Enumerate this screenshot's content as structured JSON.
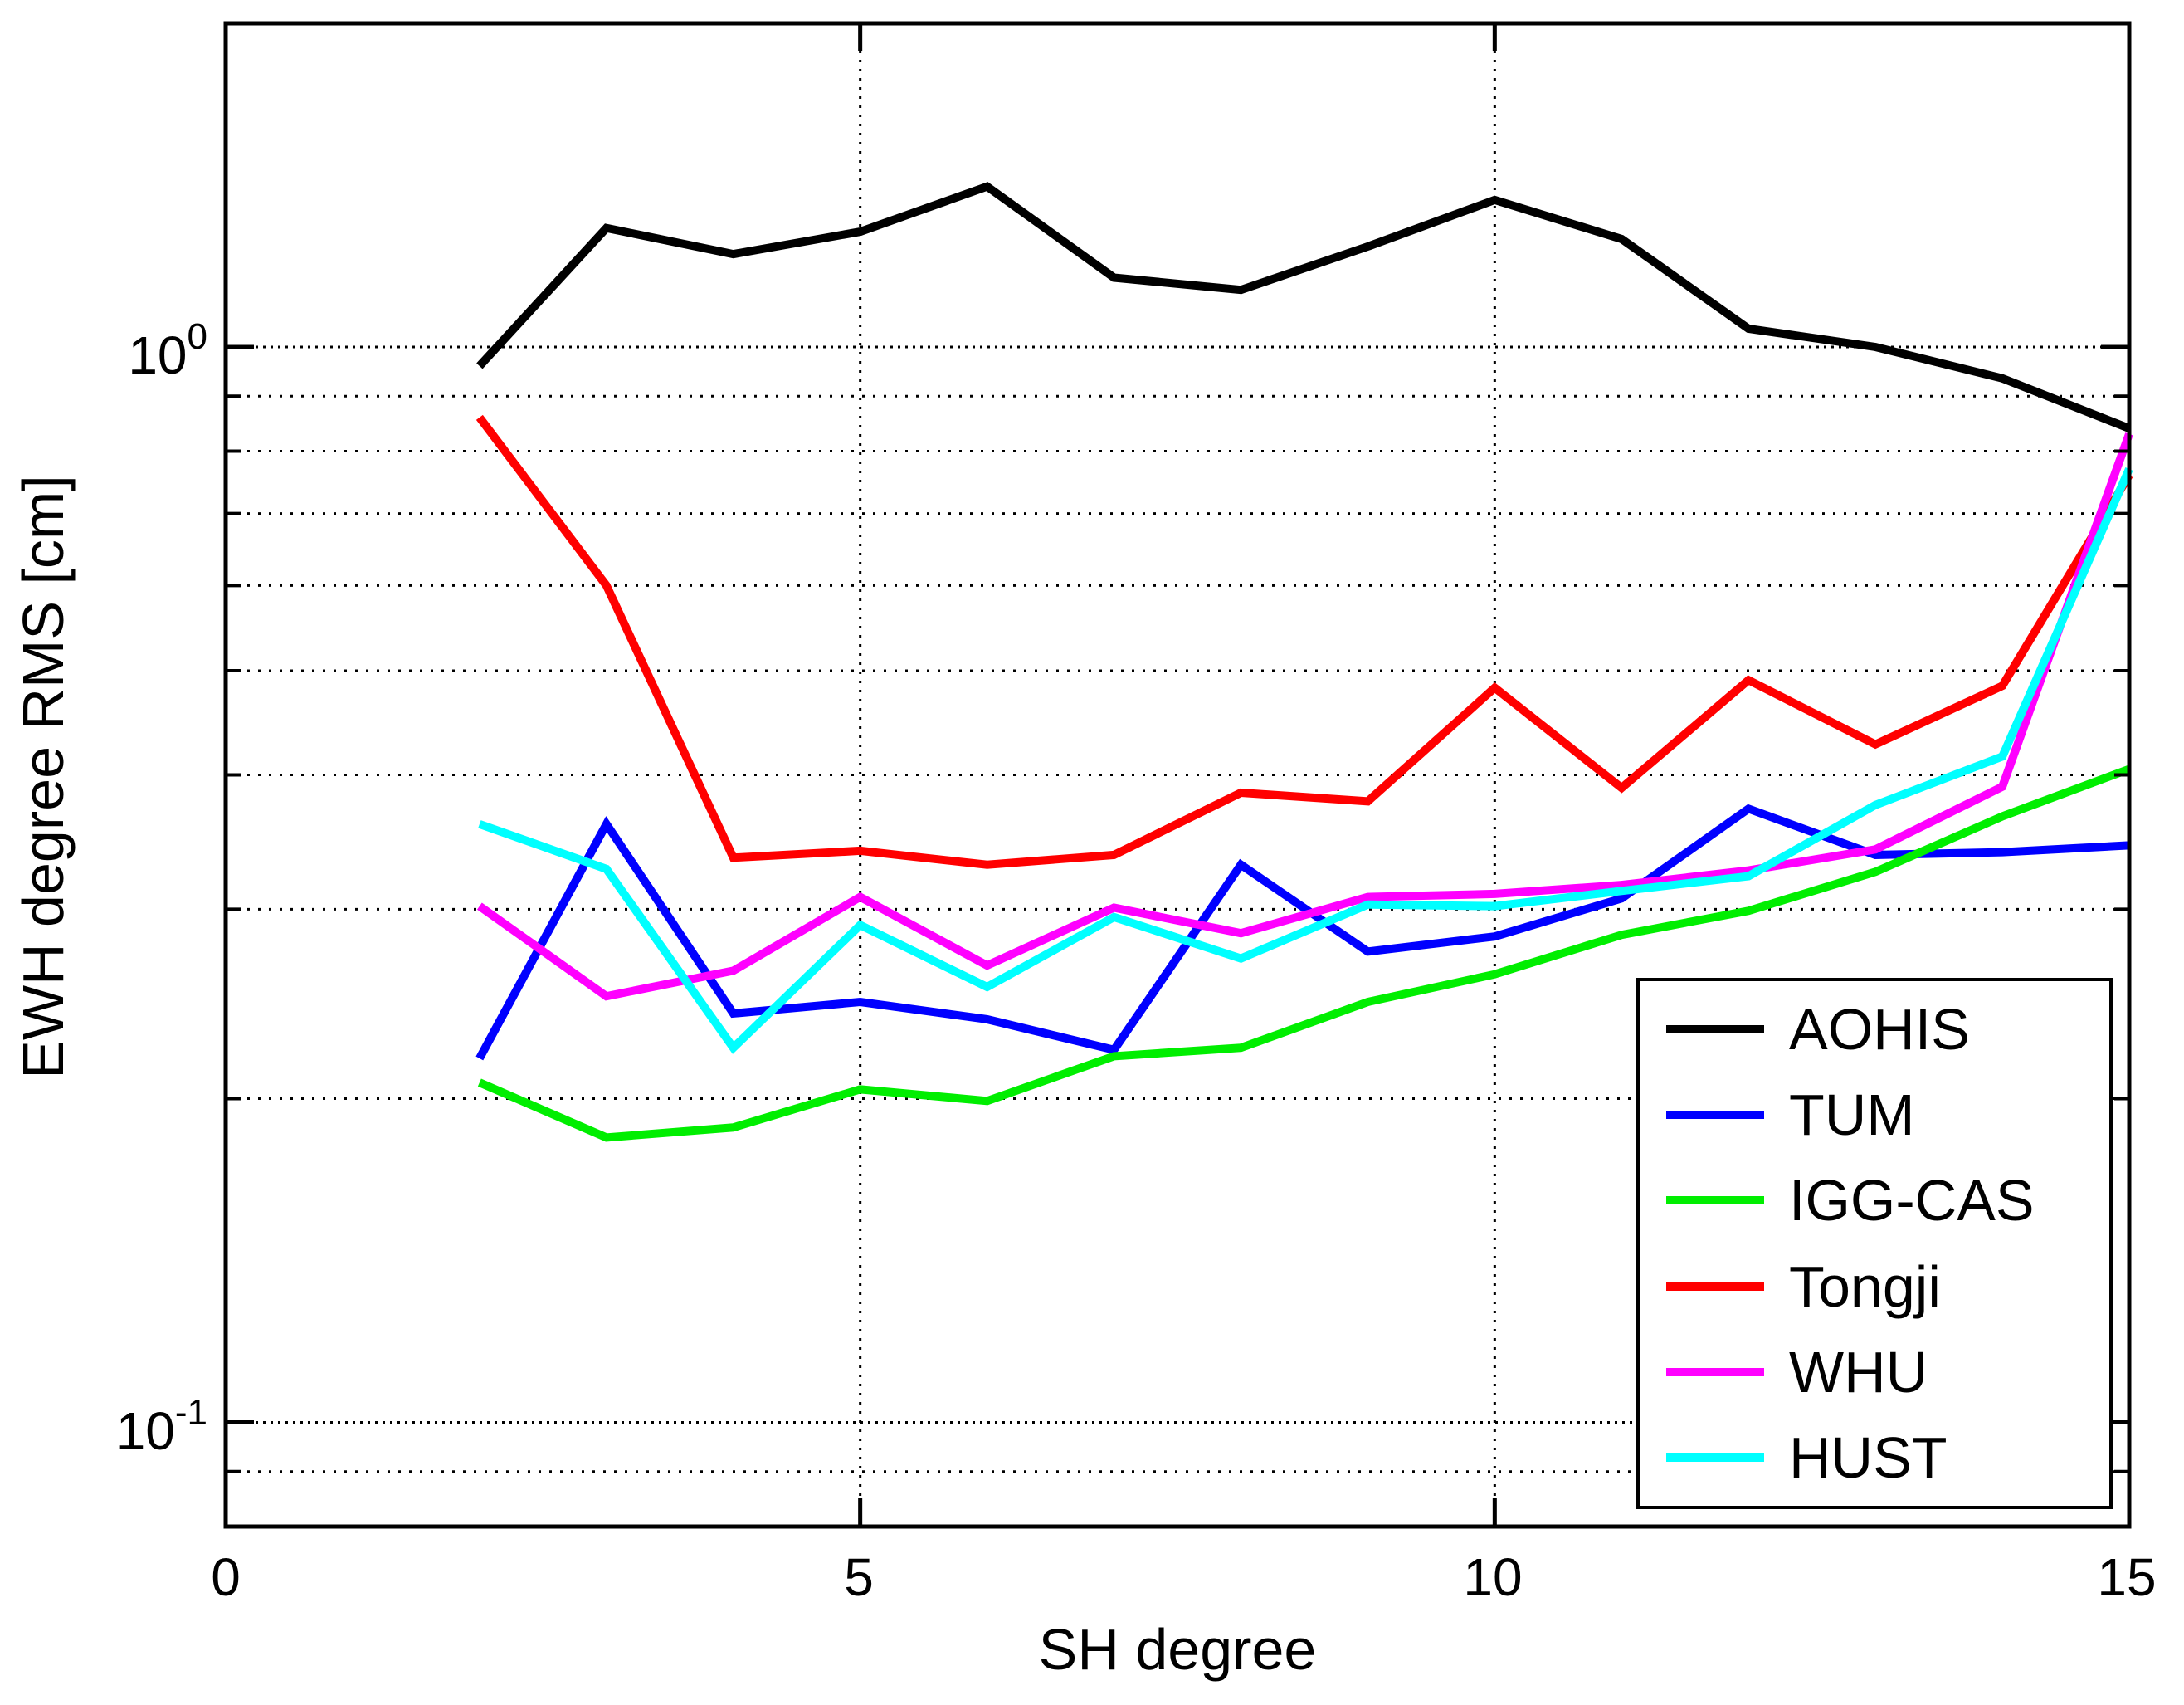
{
  "chart_data": {
    "type": "line",
    "title": "",
    "xlabel": "SH degree",
    "ylabel": "EWH degree RMS [cm]",
    "xlim": [
      0,
      15
    ],
    "ylim": [
      0.08,
      2
    ],
    "yscale": "log",
    "grid": true,
    "legend_position": "lower right",
    "x": [
      2,
      3,
      4,
      5,
      6,
      7,
      8,
      9,
      10,
      11,
      12,
      13,
      14,
      15
    ],
    "xticks": [
      {
        "value": 0,
        "label": "0"
      },
      {
        "value": 5,
        "label": "5"
      },
      {
        "value": 10,
        "label": "10"
      },
      {
        "value": 15,
        "label": "15"
      }
    ],
    "yticks": [
      {
        "value": 1,
        "base": "10",
        "exp": "0"
      },
      {
        "value": 0.1,
        "base": "10",
        "exp": "-1"
      }
    ],
    "series": [
      {
        "name": "AOHIS",
        "color": "#000000",
        "values": [
          0.96,
          1.29,
          1.22,
          1.28,
          1.41,
          1.16,
          1.13,
          1.24,
          1.37,
          1.26,
          1.04,
          1.0,
          0.935,
          0.84
        ]
      },
      {
        "name": "TUM",
        "color": "#0000ff",
        "values": [
          0.218,
          0.36,
          0.24,
          0.246,
          0.237,
          0.222,
          0.33,
          0.274,
          0.283,
          0.307,
          0.372,
          0.337,
          0.339,
          0.344
        ]
      },
      {
        "name": "IGG-CAS",
        "color": "#00ee00",
        "values": [
          0.207,
          0.184,
          0.188,
          0.204,
          0.199,
          0.219,
          0.223,
          0.246,
          0.261,
          0.284,
          0.299,
          0.325,
          0.366,
          0.405
        ]
      },
      {
        "name": "Tongji",
        "color": "#ff0000",
        "values": [
          0.86,
          0.6,
          0.335,
          0.34,
          0.33,
          0.337,
          0.385,
          0.378,
          0.482,
          0.389,
          0.49,
          0.427,
          0.484,
          0.76
        ]
      },
      {
        "name": "WHU",
        "color": "#ff00ff",
        "values": [
          0.302,
          0.249,
          0.263,
          0.308,
          0.266,
          0.301,
          0.285,
          0.308,
          0.31,
          0.316,
          0.326,
          0.341,
          0.39,
          0.83
        ]
      },
      {
        "name": "HUST",
        "color": "#00ffff",
        "values": [
          0.36,
          0.327,
          0.223,
          0.29,
          0.254,
          0.295,
          0.27,
          0.303,
          0.302,
          0.312,
          0.322,
          0.375,
          0.416,
          0.77
        ]
      }
    ]
  }
}
